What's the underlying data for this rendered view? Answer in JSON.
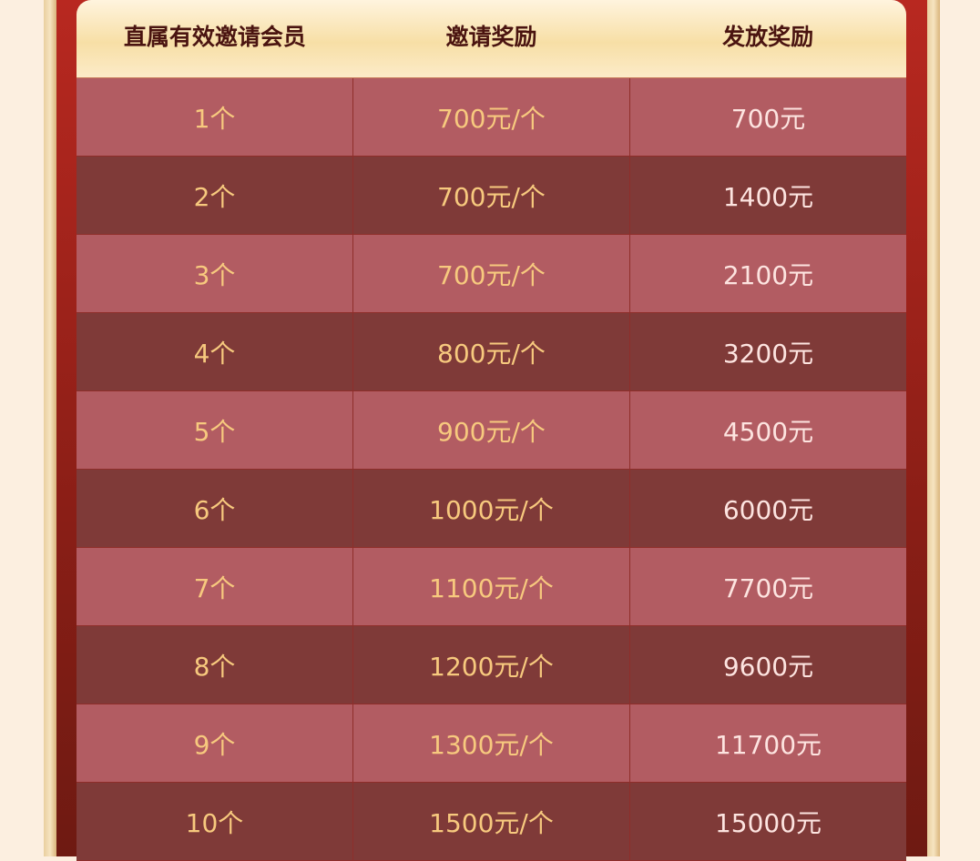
{
  "colors": {
    "light_row": "#b25c62",
    "dark_row": "#7f3a38",
    "gold_text": "#f7c97e",
    "pink_text": "#fde4e0",
    "header_text": "#4a1410"
  },
  "table": {
    "headers": [
      "直属有效邀请会员",
      "邀请奖励",
      "发放奖励"
    ],
    "rows": [
      [
        "1个",
        "700元/个",
        "700元"
      ],
      [
        "2个",
        "700元/个",
        "1400元"
      ],
      [
        "3个",
        "700元/个",
        "2100元"
      ],
      [
        "4个",
        "800元/个",
        "3200元"
      ],
      [
        "5个",
        "900元/个",
        "4500元"
      ],
      [
        "6个",
        "1000元/个",
        "6000元"
      ],
      [
        "7个",
        "1100元/个",
        "7700元"
      ],
      [
        "8个",
        "1200元/个",
        "9600元"
      ],
      [
        "9个",
        "1300元/个",
        "11700元"
      ],
      [
        "10个",
        "1500元/个",
        "15000元"
      ]
    ]
  }
}
